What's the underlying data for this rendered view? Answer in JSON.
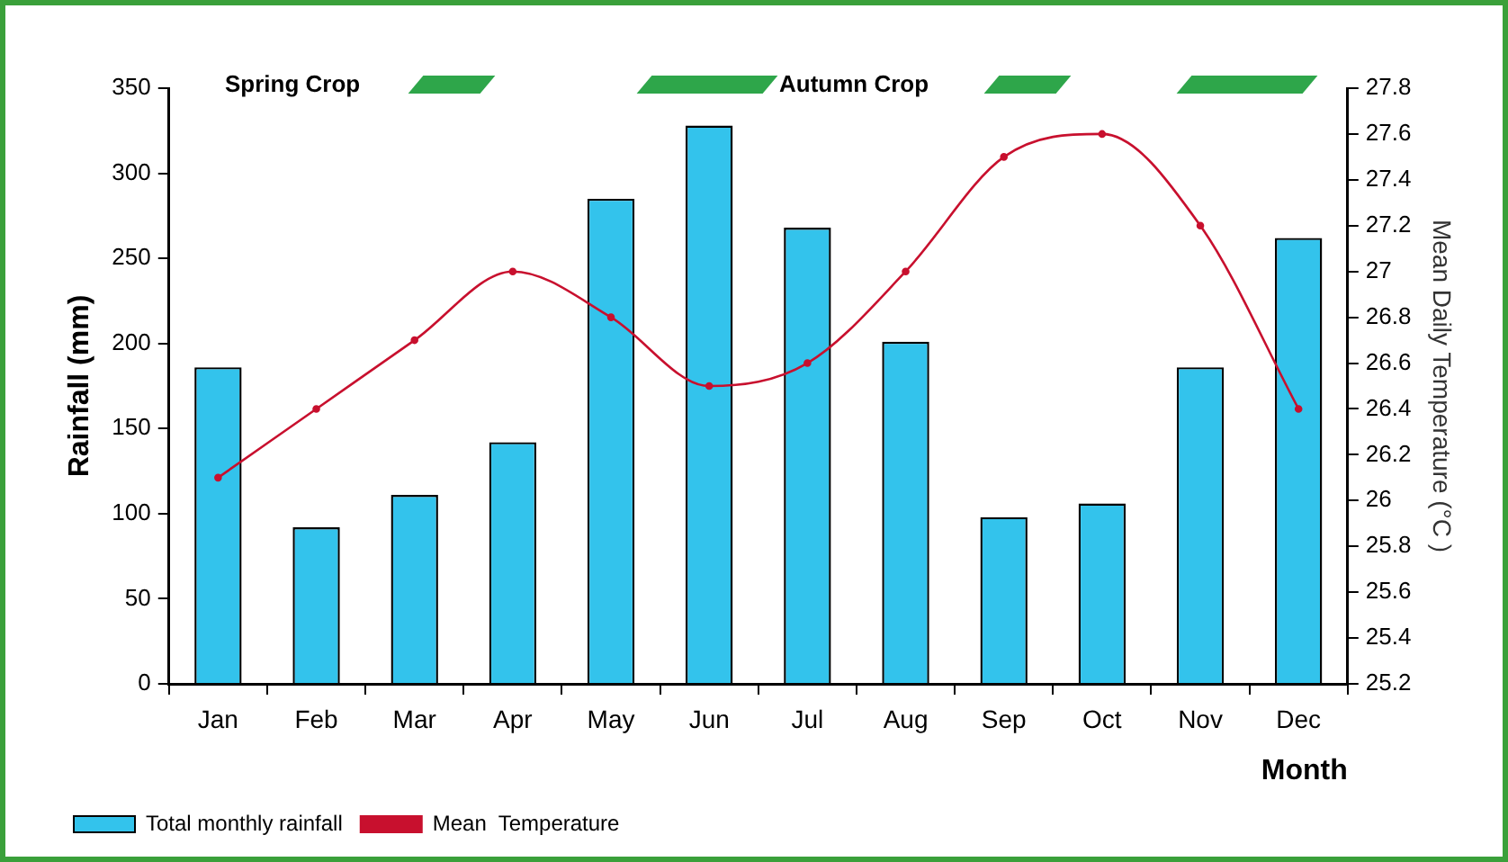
{
  "chart_data": {
    "type": "bar",
    "xlabel": "Month",
    "ylabel": "Rainfall (mm)",
    "y2label": "Mean Daily Temperature (°C )",
    "categories": [
      "Jan",
      "Feb",
      "Mar",
      "Apr",
      "May",
      "Jun",
      "Jul",
      "Aug",
      "Sep",
      "Oct",
      "Nov",
      "Dec"
    ],
    "series": [
      {
        "name": "Total monthly rainfall",
        "color": "#33c3ec",
        "values": [
          186,
          92,
          111,
          142,
          285,
          328,
          268,
          201,
          98,
          106,
          186,
          262
        ]
      },
      {
        "name": "Mean  Temperature",
        "type": "line",
        "axis": "y2",
        "color": "#c8102e",
        "marker": "circle",
        "values": [
          26.1,
          26.4,
          26.7,
          27.0,
          26.8,
          26.5,
          26.6,
          27.0,
          27.5,
          27.6,
          27.2,
          26.4
        ]
      }
    ],
    "ylim": [
      0,
      350
    ],
    "yticks": [
      0,
      50,
      100,
      150,
      200,
      250,
      300,
      350
    ],
    "y2lim": [
      25.2,
      27.8
    ],
    "y2ticks": [
      25.2,
      25.4,
      25.6,
      25.8,
      26,
      26.2,
      26.4,
      26.6,
      26.8,
      27,
      27.2,
      27.4,
      27.6,
      27.8
    ],
    "annotations": [
      "Spring Crop",
      "Autumn Crop"
    ],
    "grid": false,
    "legend": "bottom left"
  }
}
